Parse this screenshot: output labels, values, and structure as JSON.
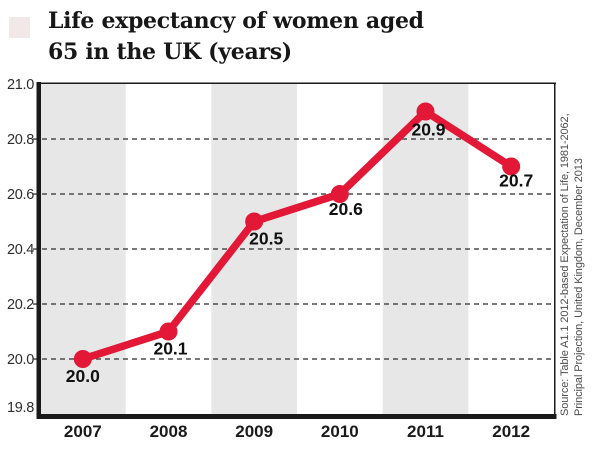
{
  "title": {
    "line1": "Life expectancy of women aged",
    "line2": "65 in the UK (years)"
  },
  "source": {
    "line1": "Source: Table A1.1 2012-based Expectation of Life, 1981-2062,",
    "line2": "Principal Projection, United Kingdom, December 2013"
  },
  "chart_data": {
    "type": "line",
    "title": "Life expectancy of women aged 65 in the UK (years)",
    "categories": [
      "2007",
      "2008",
      "2009",
      "2010",
      "2011",
      "2012"
    ],
    "values": [
      20.0,
      20.1,
      20.5,
      20.6,
      20.9,
      20.7
    ],
    "point_labels": [
      "20.0",
      "20.1",
      "20.5",
      "20.6",
      "20.9",
      "20.7"
    ],
    "xlabel": "",
    "ylabel": "",
    "ylim": [
      19.8,
      21.0
    ],
    "yticks": [
      19.8,
      20.0,
      20.2,
      20.4,
      20.6,
      20.8,
      21.0
    ],
    "ytick_labels": [
      "19.8",
      "20.0",
      "20.2",
      "20.4",
      "20.6",
      "20.8",
      "21.0"
    ],
    "grid": "dashed horizontal gridlines at interior ticks",
    "legend": "none",
    "band_shading": "alternating vertical year bands, gray starting at 2007"
  },
  "colors": {
    "line": "#e21836",
    "band": "#e7e7e7",
    "grid": "#4d4d4d",
    "axis": "#1a1a1a",
    "ytick_label": "#2e2e2e",
    "xtick_label": "#1a1a1a",
    "data_label": "#111111",
    "source_text": "#4d4d4d",
    "title_text": "#171717",
    "background": "#ffffff"
  }
}
